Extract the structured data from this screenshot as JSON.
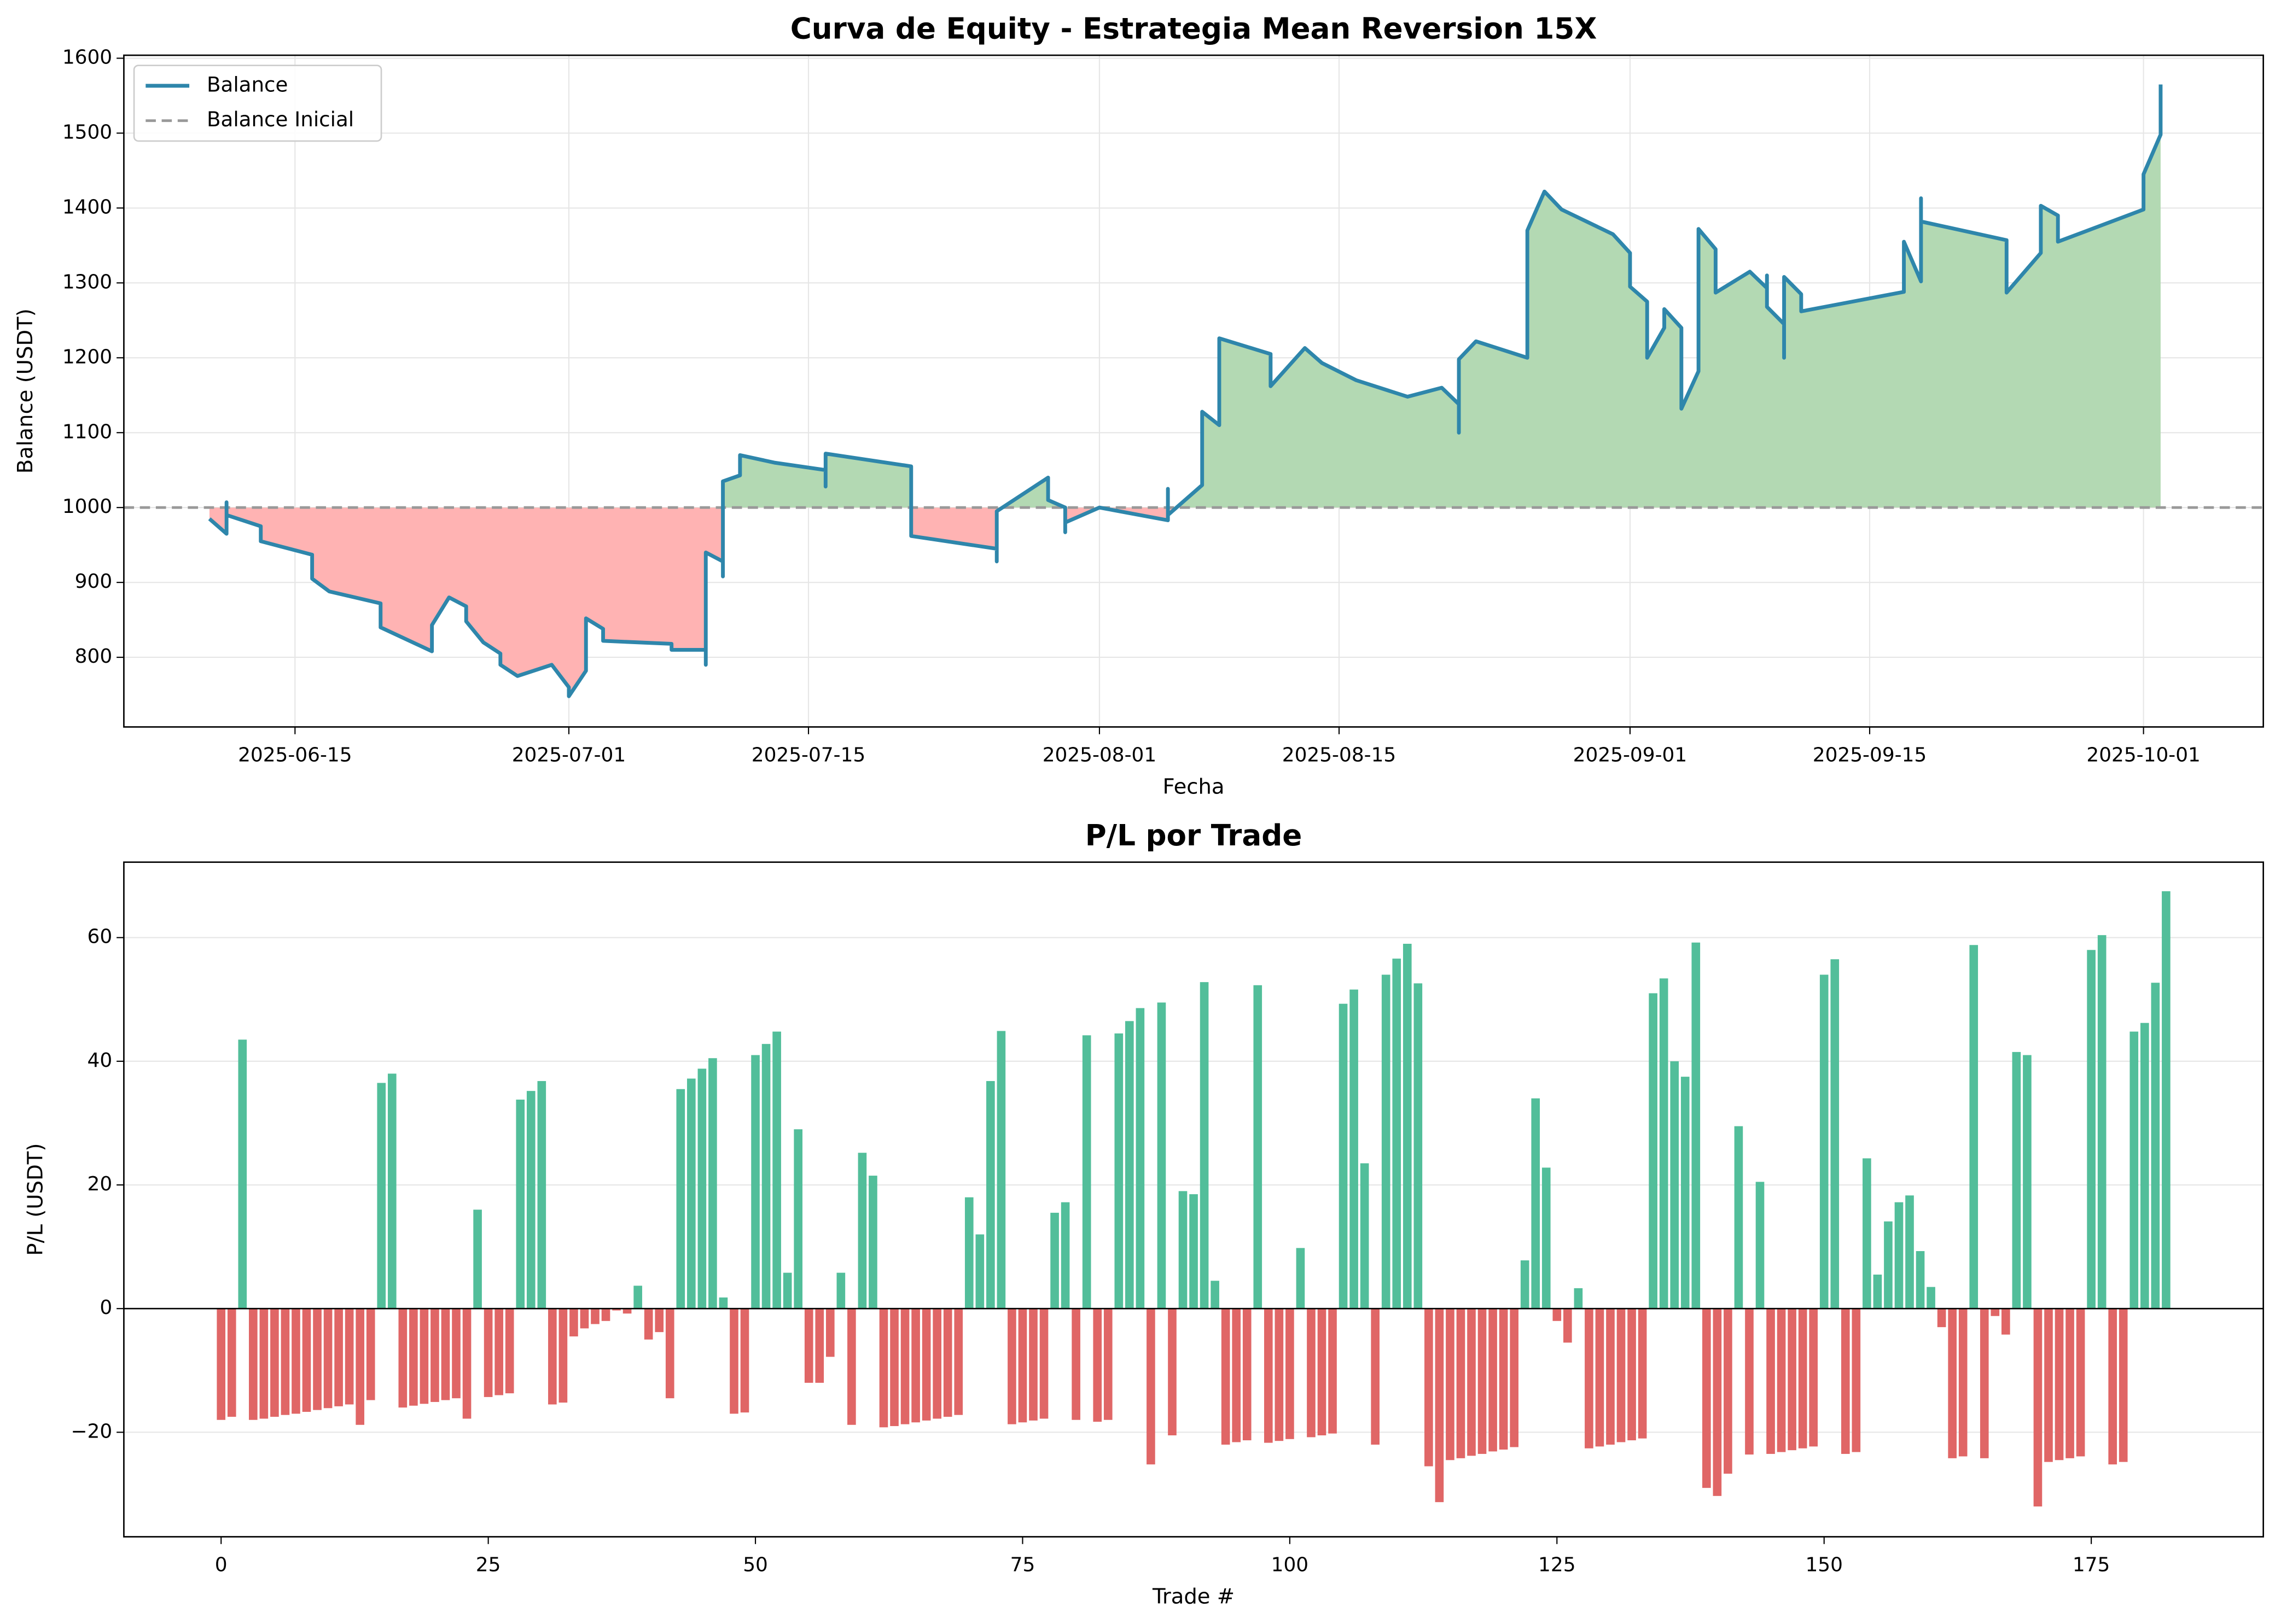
{
  "chart_data": [
    {
      "type": "line",
      "title": "Curva de Equity - Estrategia Mean Reversion 15X",
      "xlabel": "Fecha",
      "ylabel": "Balance (USDT)",
      "x": [
        "2025-06-10",
        "2025-06-11",
        "2025-06-11",
        "2025-06-11",
        "2025-06-13",
        "2025-06-13",
        "2025-06-16",
        "2025-06-16",
        "2025-06-17",
        "2025-06-20",
        "2025-06-20",
        "2025-06-23",
        "2025-06-23",
        "2025-06-24",
        "2025-06-25",
        "2025-06-25",
        "2025-06-26",
        "2025-06-27",
        "2025-06-27",
        "2025-06-28",
        "2025-06-30",
        "2025-07-01",
        "2025-07-01",
        "2025-07-02",
        "2025-07-02",
        "2025-07-03",
        "2025-07-03",
        "2025-07-07",
        "2025-07-07",
        "2025-07-09",
        "2025-07-09",
        "2025-07-09",
        "2025-07-10",
        "2025-07-10",
        "2025-07-10",
        "2025-07-11",
        "2025-07-11",
        "2025-07-13",
        "2025-07-16",
        "2025-07-16",
        "2025-07-16",
        "2025-07-21",
        "2025-07-21",
        "2025-07-21",
        "2025-07-26",
        "2025-07-26",
        "2025-07-26",
        "2025-07-29",
        "2025-07-29",
        "2025-07-30",
        "2025-07-30",
        "2025-07-30",
        "2025-08-01",
        "2025-08-05",
        "2025-08-05",
        "2025-08-05",
        "2025-08-07",
        "2025-08-07",
        "2025-08-08",
        "2025-08-08",
        "2025-08-08",
        "2025-08-08",
        "2025-08-08",
        "2025-08-11",
        "2025-08-11",
        "2025-08-13",
        "2025-08-14",
        "2025-08-16",
        "2025-08-19",
        "2025-08-21",
        "2025-08-22",
        "2025-08-22",
        "2025-08-22",
        "2025-08-23",
        "2025-08-26",
        "2025-08-26",
        "2025-08-26",
        "2025-08-27",
        "2025-08-28",
        "2025-08-31",
        "2025-09-01",
        "2025-09-01",
        "2025-09-02",
        "2025-09-02",
        "2025-09-03",
        "2025-09-03",
        "2025-09-04",
        "2025-09-04",
        "2025-09-05",
        "2025-09-05",
        "2025-09-05",
        "2025-09-06",
        "2025-09-06",
        "2025-09-08",
        "2025-09-09",
        "2025-09-09",
        "2025-09-09",
        "2025-09-10",
        "2025-09-10",
        "2025-09-10",
        "2025-09-11",
        "2025-09-11",
        "2025-09-17",
        "2025-09-17",
        "2025-09-17",
        "2025-09-18",
        "2025-09-18",
        "2025-09-18",
        "2025-09-18",
        "2025-09-18",
        "2025-09-23",
        "2025-09-23",
        "2025-09-25",
        "2025-09-25",
        "2025-09-26",
        "2025-09-26",
        "2025-09-26",
        "2025-10-01",
        "2025-10-01",
        "2025-10-02",
        "2025-10-02"
      ],
      "series": [
        {
          "name": "Balance",
          "color": "#2e86ab",
          "values": [
            985,
            965,
            1007,
            990,
            975,
            955,
            937,
            905,
            888,
            872,
            840,
            808,
            843,
            880,
            868,
            848,
            820,
            805,
            790,
            775,
            790,
            760,
            748,
            782,
            852,
            838,
            822,
            818,
            810,
            810,
            790,
            940,
            928,
            908,
            1035,
            1043,
            1070,
            1060,
            1050,
            1028,
            1072,
            1055,
            1015,
            962,
            945,
            928,
            995,
            1040,
            1010,
            1000,
            967,
            980,
            1000,
            983,
            1025,
            990,
            1030,
            1128,
            1110,
            1155,
            1130,
            1222,
            1226,
            1205,
            1162,
            1213,
            1193,
            1170,
            1148,
            1160,
            1138,
            1100,
            1198,
            1222,
            1200,
            1255,
            1370,
            1422,
            1398,
            1365,
            1340,
            1295,
            1275,
            1200,
            1240,
            1265,
            1240,
            1132,
            1182,
            1235,
            1372,
            1345,
            1287,
            1315,
            1293,
            1310,
            1268,
            1245,
            1200,
            1308,
            1285,
            1262,
            1288,
            1350,
            1355,
            1302,
            1362,
            1335,
            1413,
            1382,
            1357,
            1287,
            1340,
            1403,
            1390,
            1378,
            1355,
            1398,
            1445,
            1498,
            1565
          ]
        },
        {
          "name": "Balance Inicial",
          "color": "#999999",
          "value": 1000,
          "linestyle": "dashed"
        }
      ],
      "fill_above_color": "#b3d9b3",
      "fill_below_color": "#ffb3b3",
      "xlim": [
        "2025-06-05",
        "2025-10-08"
      ],
      "xticks": [
        "2025-06-15",
        "2025-07-01",
        "2025-07-15",
        "2025-08-01",
        "2025-08-15",
        "2025-09-01",
        "2025-09-15",
        "2025-10-01"
      ],
      "ylim": [
        707,
        1604
      ],
      "yticks": [
        800,
        900,
        1000,
        1100,
        1200,
        1300,
        1400,
        1500,
        1600
      ],
      "grid": "both",
      "legend": "upper left"
    },
    {
      "type": "bar",
      "title": "P/L por Trade",
      "xlabel": "Trade #",
      "ylabel": "P/L (USDT)",
      "values": [
        -18,
        -17.5,
        43.5,
        -18,
        -17.8,
        -17.5,
        -17.2,
        -17,
        -16.7,
        -16.4,
        -16.1,
        -15.8,
        -15.5,
        -18.8,
        -14.8,
        36.5,
        38,
        -16,
        -15.7,
        -15.4,
        -15.1,
        -14.8,
        -14.5,
        -17.8,
        16,
        -14.3,
        -14,
        -13.7,
        33.8,
        35.2,
        36.8,
        -15.5,
        -15.2,
        -4.5,
        -3.2,
        -2.5,
        -2,
        -0.3,
        -0.8,
        3.7,
        -5,
        -3.8,
        -14.5,
        35.5,
        37.2,
        38.8,
        40.5,
        1.8,
        -17,
        -16.8,
        41,
        42.8,
        44.8,
        5.8,
        29,
        -12,
        -12,
        -7.8,
        5.8,
        -18.8,
        25.2,
        21.5,
        -19.2,
        -19,
        -18.7,
        -18.4,
        -18.1,
        -17.8,
        -17.5,
        -17.2,
        18,
        12,
        36.8,
        44.9,
        -18.7,
        -18.4,
        -18.1,
        -17.8,
        15.5,
        17.2,
        -18,
        44.2,
        -18.3,
        -18,
        44.5,
        46.5,
        48.6,
        -25.2,
        49.5,
        -20.5,
        19,
        18.5,
        52.8,
        4.5,
        -22,
        -21.6,
        -21.3,
        52.3,
        -21.7,
        -21.4,
        -21.1,
        9.8,
        -20.8,
        -20.5,
        -20.2,
        49.3,
        51.6,
        23.5,
        -22,
        54,
        56.6,
        59,
        52.6,
        -25.5,
        -31.3,
        -24.5,
        -24.2,
        -23.8,
        -23.5,
        -23.1,
        -22.8,
        -22.4,
        7.8,
        34,
        22.8,
        -2,
        -5.5,
        3.3,
        -22.6,
        -22.3,
        -22,
        -21.6,
        -21.3,
        -21,
        51,
        53.4,
        40,
        37.5,
        59.2,
        -29,
        -30.3,
        -26.7,
        29.5,
        -23.6,
        20.5,
        -23.5,
        -23.2,
        -22.9,
        -22.6,
        -22.3,
        54,
        56.5,
        -23.5,
        -23.2,
        24.3,
        5.5,
        14.1,
        17.2,
        18.3,
        9.3,
        3.5,
        -3,
        -24.2,
        -23.9,
        58.8,
        -24.2,
        -1.2,
        -4.2,
        41.5,
        41,
        -32,
        -24.8,
        -24.5,
        -24.2,
        -23.9,
        58,
        60.4,
        -25.2,
        -24.8,
        44.8,
        46.2,
        52.7,
        67.5
      ],
      "positive_color": "#52be9a",
      "negative_color": "#e06666",
      "xlim": [
        -9.1,
        191.1
      ],
      "xticks": [
        0,
        25,
        50,
        75,
        100,
        125,
        150,
        175
      ],
      "ylim": [
        -36.9,
        72.2
      ],
      "yticks": [
        {
          "value": -20,
          "label": "−20"
        },
        0,
        20,
        40,
        60
      ],
      "grid": "y"
    }
  ]
}
